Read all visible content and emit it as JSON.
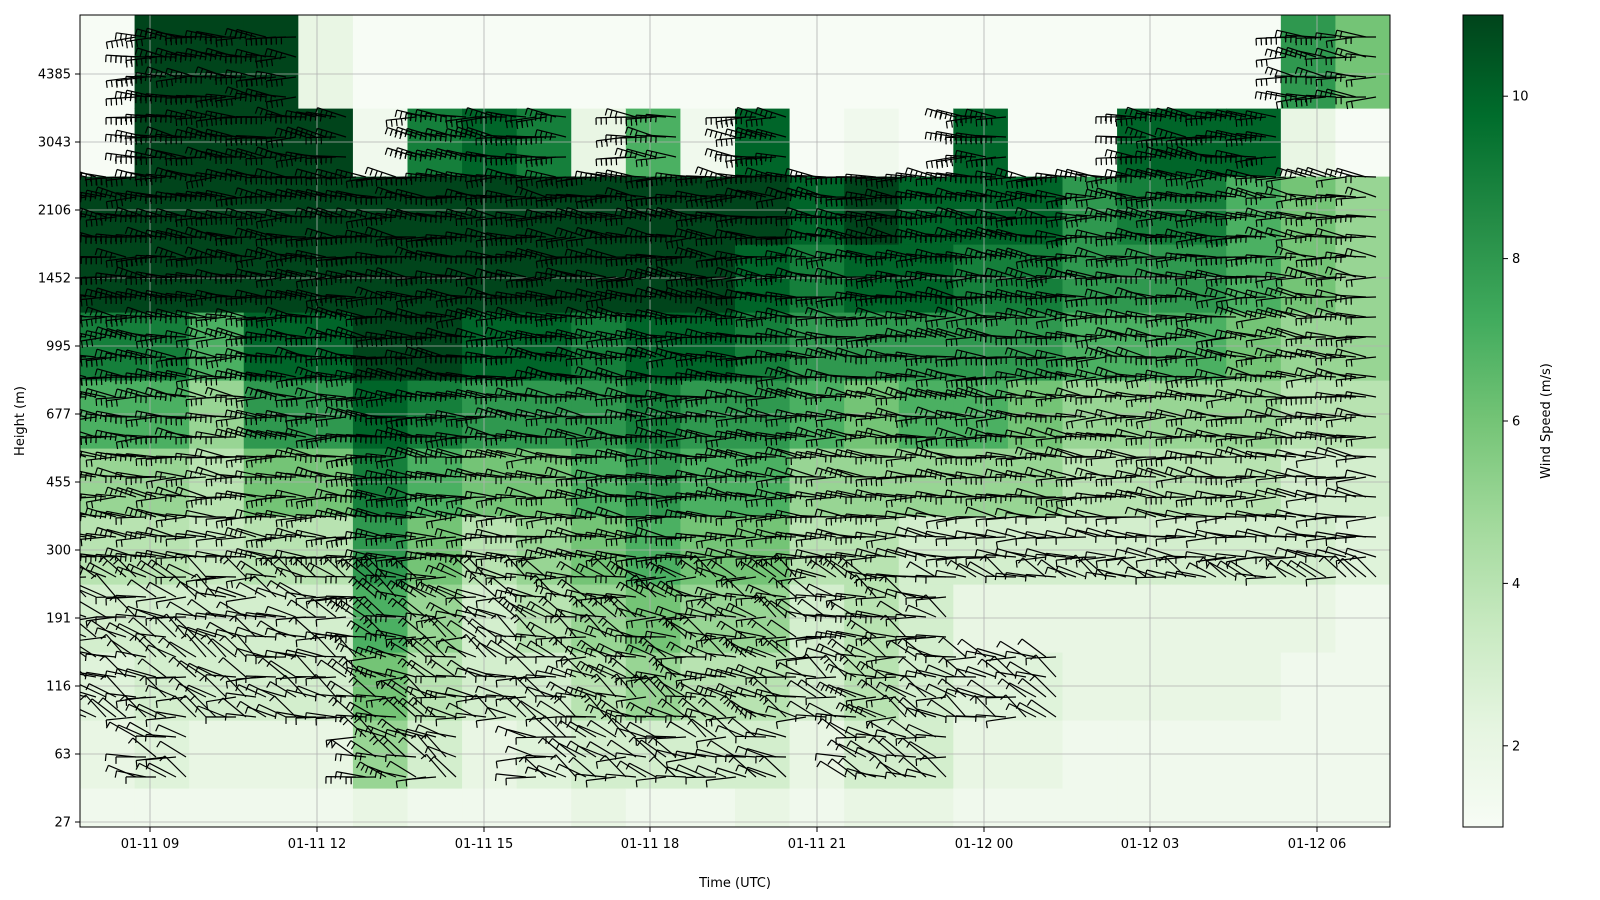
{
  "chart_data": {
    "type": "heatmap",
    "title": "",
    "xlabel": "Time (UTC)",
    "ylabel": "Height (m)",
    "x_ticks": [
      "01-11 09",
      "01-11 12",
      "01-11 15",
      "01-11 18",
      "01-11 21",
      "01-12 00",
      "01-12 03",
      "01-12 06"
    ],
    "y_ticks": [
      "27",
      "63",
      "116",
      "191",
      "300",
      "455",
      "677",
      "995",
      "1452",
      "2106",
      "3043",
      "4385"
    ],
    "grid": true,
    "colorbar": {
      "label": "Wind Speed (m/s)",
      "ticks": [
        "2",
        "4",
        "6",
        "8",
        "10"
      ],
      "min": 1,
      "max": 11,
      "colormap": "Greens",
      "colors": [
        "#f7fcf5",
        "#e5f5e0",
        "#c7e9c0",
        "#a1d99b",
        "#74c476",
        "#41ab5d",
        "#238b45",
        "#006d2c",
        "#00441b"
      ]
    },
    "overlay": "wind barbs",
    "speed_profile_by_time_block": [
      {
        "time": "01-11 08",
        "speeds": [
          1.5,
          2,
          2.5,
          3,
          4,
          5,
          7,
          9,
          11,
          11,
          1,
          1
        ]
      },
      {
        "time": "01-11 09",
        "speeds": [
          1.5,
          2.5,
          3,
          3,
          4,
          5,
          7,
          9,
          11,
          11,
          11,
          11
        ]
      },
      {
        "time": "01-11 10",
        "speeds": [
          1.5,
          2,
          3,
          3,
          3.5,
          4,
          5,
          7,
          11,
          11,
          11,
          11
        ]
      },
      {
        "time": "01-11 11",
        "speeds": [
          1.5,
          2,
          3,
          3,
          4,
          6,
          8,
          10,
          11,
          11,
          11,
          11
        ]
      },
      {
        "time": "01-11 12",
        "speeds": [
          1.5,
          2,
          3,
          3,
          4,
          6,
          8,
          10,
          11,
          11,
          11,
          2
        ]
      },
      {
        "time": "01-11 13",
        "speeds": [
          2,
          5,
          6,
          7,
          8,
          9,
          10,
          11,
          11,
          11,
          1.5,
          1
        ]
      },
      {
        "time": "01-11 14",
        "speeds": [
          1.5,
          3,
          4,
          5,
          6,
          7,
          9,
          11,
          11,
          11,
          9,
          1
        ]
      },
      {
        "time": "01-11 15",
        "speeds": [
          1.5,
          2,
          3,
          3,
          4,
          6,
          8,
          10,
          11,
          11,
          10,
          1
        ]
      },
      {
        "time": "01-11 16",
        "speeds": [
          1.5,
          2.5,
          3,
          4,
          5,
          6,
          8,
          10,
          11,
          11,
          9,
          1
        ]
      },
      {
        "time": "01-11 17",
        "speeds": [
          2,
          3,
          4,
          5,
          6,
          7,
          8,
          9,
          11,
          11,
          2,
          1
        ]
      },
      {
        "time": "01-11 18",
        "speeds": [
          1.5,
          3,
          5,
          6,
          7,
          8,
          9,
          10,
          11,
          11,
          7,
          1
        ]
      },
      {
        "time": "01-11 19",
        "speeds": [
          1.5,
          3,
          4,
          5,
          6,
          7,
          8,
          10,
          11,
          11,
          1.5,
          1
        ]
      },
      {
        "time": "01-11 20",
        "speeds": [
          2,
          3,
          4,
          5,
          6,
          7,
          8,
          9,
          10,
          11,
          10,
          1
        ]
      },
      {
        "time": "01-11 21",
        "speeds": [
          1.5,
          2,
          3,
          3,
          4,
          5,
          7,
          8,
          9,
          10,
          1,
          1
        ]
      },
      {
        "time": "01-11 22",
        "speeds": [
          2,
          3,
          4,
          4,
          4,
          5,
          6,
          8,
          10,
          11,
          1.5,
          1
        ]
      },
      {
        "time": "01-11 23",
        "speeds": [
          2,
          3,
          3,
          3,
          3,
          5,
          7,
          8,
          10,
          10,
          1,
          1
        ]
      },
      {
        "time": "01-12 00",
        "speeds": [
          1.5,
          2,
          2.5,
          2,
          3,
          5,
          7,
          8,
          9,
          10,
          10,
          1
        ]
      },
      {
        "time": "01-12 01",
        "speeds": [
          1.5,
          2,
          2.5,
          2,
          3,
          5,
          6,
          8,
          9,
          10,
          1,
          1
        ]
      },
      {
        "time": "01-12 02",
        "speeds": [
          1.5,
          1.5,
          2,
          2,
          3,
          4,
          5,
          7,
          8,
          8,
          1,
          1
        ]
      },
      {
        "time": "01-12 03",
        "speeds": [
          1.5,
          1.5,
          2,
          2,
          3,
          4,
          5,
          7,
          8,
          9,
          10,
          1
        ]
      },
      {
        "time": "01-12 04",
        "speeds": [
          1.5,
          1.5,
          2,
          2,
          3,
          4,
          5,
          7,
          8,
          9,
          10,
          1
        ]
      },
      {
        "time": "01-12 05",
        "speeds": [
          1.5,
          1.5,
          2,
          2,
          3,
          4,
          5,
          6,
          7,
          7,
          10,
          1
        ]
      },
      {
        "time": "01-12 06",
        "speeds": [
          1.5,
          1.5,
          1.5,
          2,
          3,
          3,
          4,
          5,
          6,
          6,
          2,
          8
        ]
      },
      {
        "time": "01-12 07",
        "speeds": [
          1.5,
          1.5,
          1.5,
          1.5,
          2.5,
          3,
          4,
          5,
          5,
          5,
          1,
          6
        ]
      }
    ]
  }
}
